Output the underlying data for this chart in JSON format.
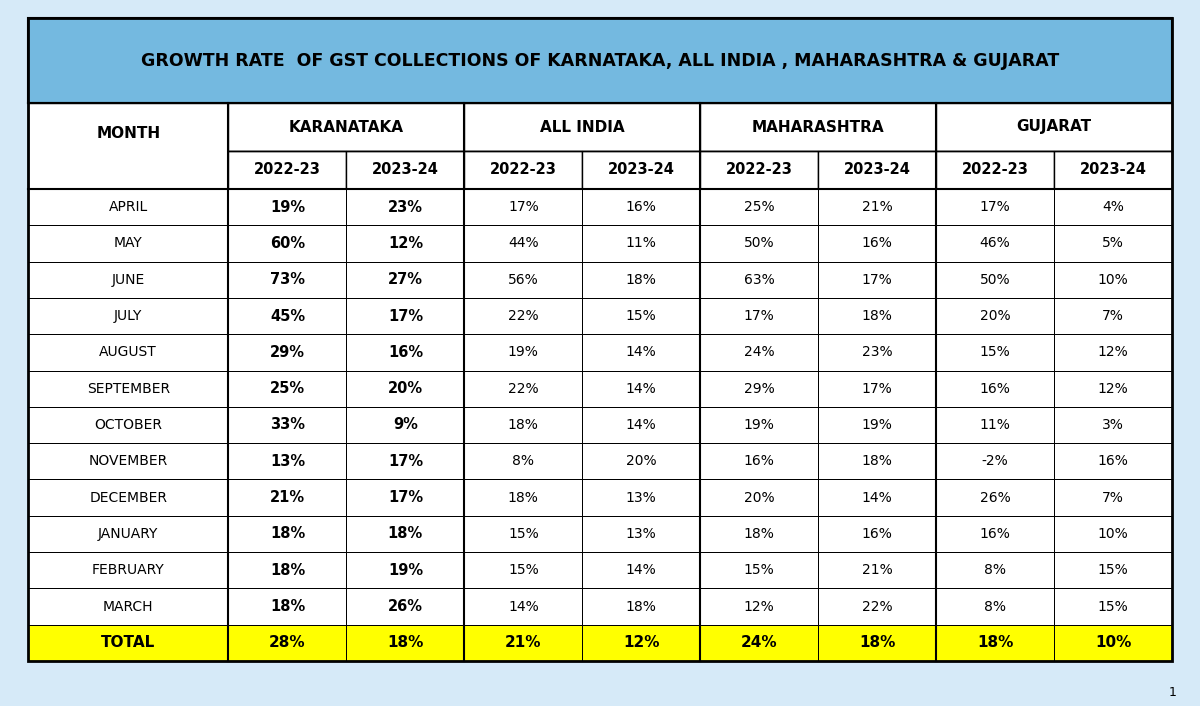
{
  "title": "GROWTH RATE  OF GST COLLECTIONS OF KARNATAKA, ALL INDIA , MAHARASHTRA & GUJARAT",
  "group_headers": [
    "KARANATAKA",
    "ALL INDIA",
    "MAHARASHTRA",
    "GUJARAT"
  ],
  "sub_headers": [
    "2022-23",
    "2023-24"
  ],
  "months": [
    "APRIL",
    "MAY",
    "JUNE",
    "JULY",
    "AUGUST",
    "SEPTEMBER",
    "OCTOBER",
    "NOVEMBER",
    "DECEMBER",
    "JANUARY",
    "FEBRUARY",
    "MARCH",
    "TOTAL"
  ],
  "data": {
    "KARANATAKA": {
      "2022-23": [
        "19%",
        "60%",
        "73%",
        "45%",
        "29%",
        "25%",
        "33%",
        "13%",
        "21%",
        "18%",
        "18%",
        "18%",
        "28%"
      ],
      "2023-24": [
        "23%",
        "12%",
        "27%",
        "17%",
        "16%",
        "20%",
        "9%",
        "17%",
        "17%",
        "18%",
        "19%",
        "26%",
        "18%"
      ]
    },
    "ALL INDIA": {
      "2022-23": [
        "17%",
        "44%",
        "56%",
        "22%",
        "19%",
        "22%",
        "18%",
        "8%",
        "18%",
        "15%",
        "15%",
        "14%",
        "21%"
      ],
      "2023-24": [
        "16%",
        "11%",
        "18%",
        "15%",
        "14%",
        "14%",
        "14%",
        "20%",
        "13%",
        "13%",
        "14%",
        "18%",
        "12%"
      ]
    },
    "MAHARASHTRA": {
      "2022-23": [
        "25%",
        "50%",
        "63%",
        "17%",
        "24%",
        "29%",
        "19%",
        "16%",
        "20%",
        "18%",
        "15%",
        "12%",
        "24%"
      ],
      "2023-24": [
        "21%",
        "16%",
        "17%",
        "18%",
        "23%",
        "17%",
        "19%",
        "18%",
        "14%",
        "16%",
        "21%",
        "22%",
        "18%"
      ]
    },
    "GUJARAT": {
      "2022-23": [
        "17%",
        "46%",
        "50%",
        "20%",
        "15%",
        "16%",
        "11%",
        "-2%",
        "26%",
        "16%",
        "8%",
        "8%",
        "18%"
      ],
      "2023-24": [
        "4%",
        "5%",
        "10%",
        "7%",
        "12%",
        "12%",
        "3%",
        "16%",
        "7%",
        "10%",
        "15%",
        "15%",
        "10%"
      ]
    }
  },
  "title_bg": "#74B9E0",
  "header_bg": "#FFFFFF",
  "total_row_bg": "#FFFF00",
  "table_bg": "#FFFFFF",
  "outer_bg": "#D6EAF8",
  "border_color": "#000000",
  "col_widths_norm": [
    1.7,
    1.0,
    1.0,
    1.0,
    1.0,
    1.0,
    1.0,
    1.0,
    1.0
  ]
}
